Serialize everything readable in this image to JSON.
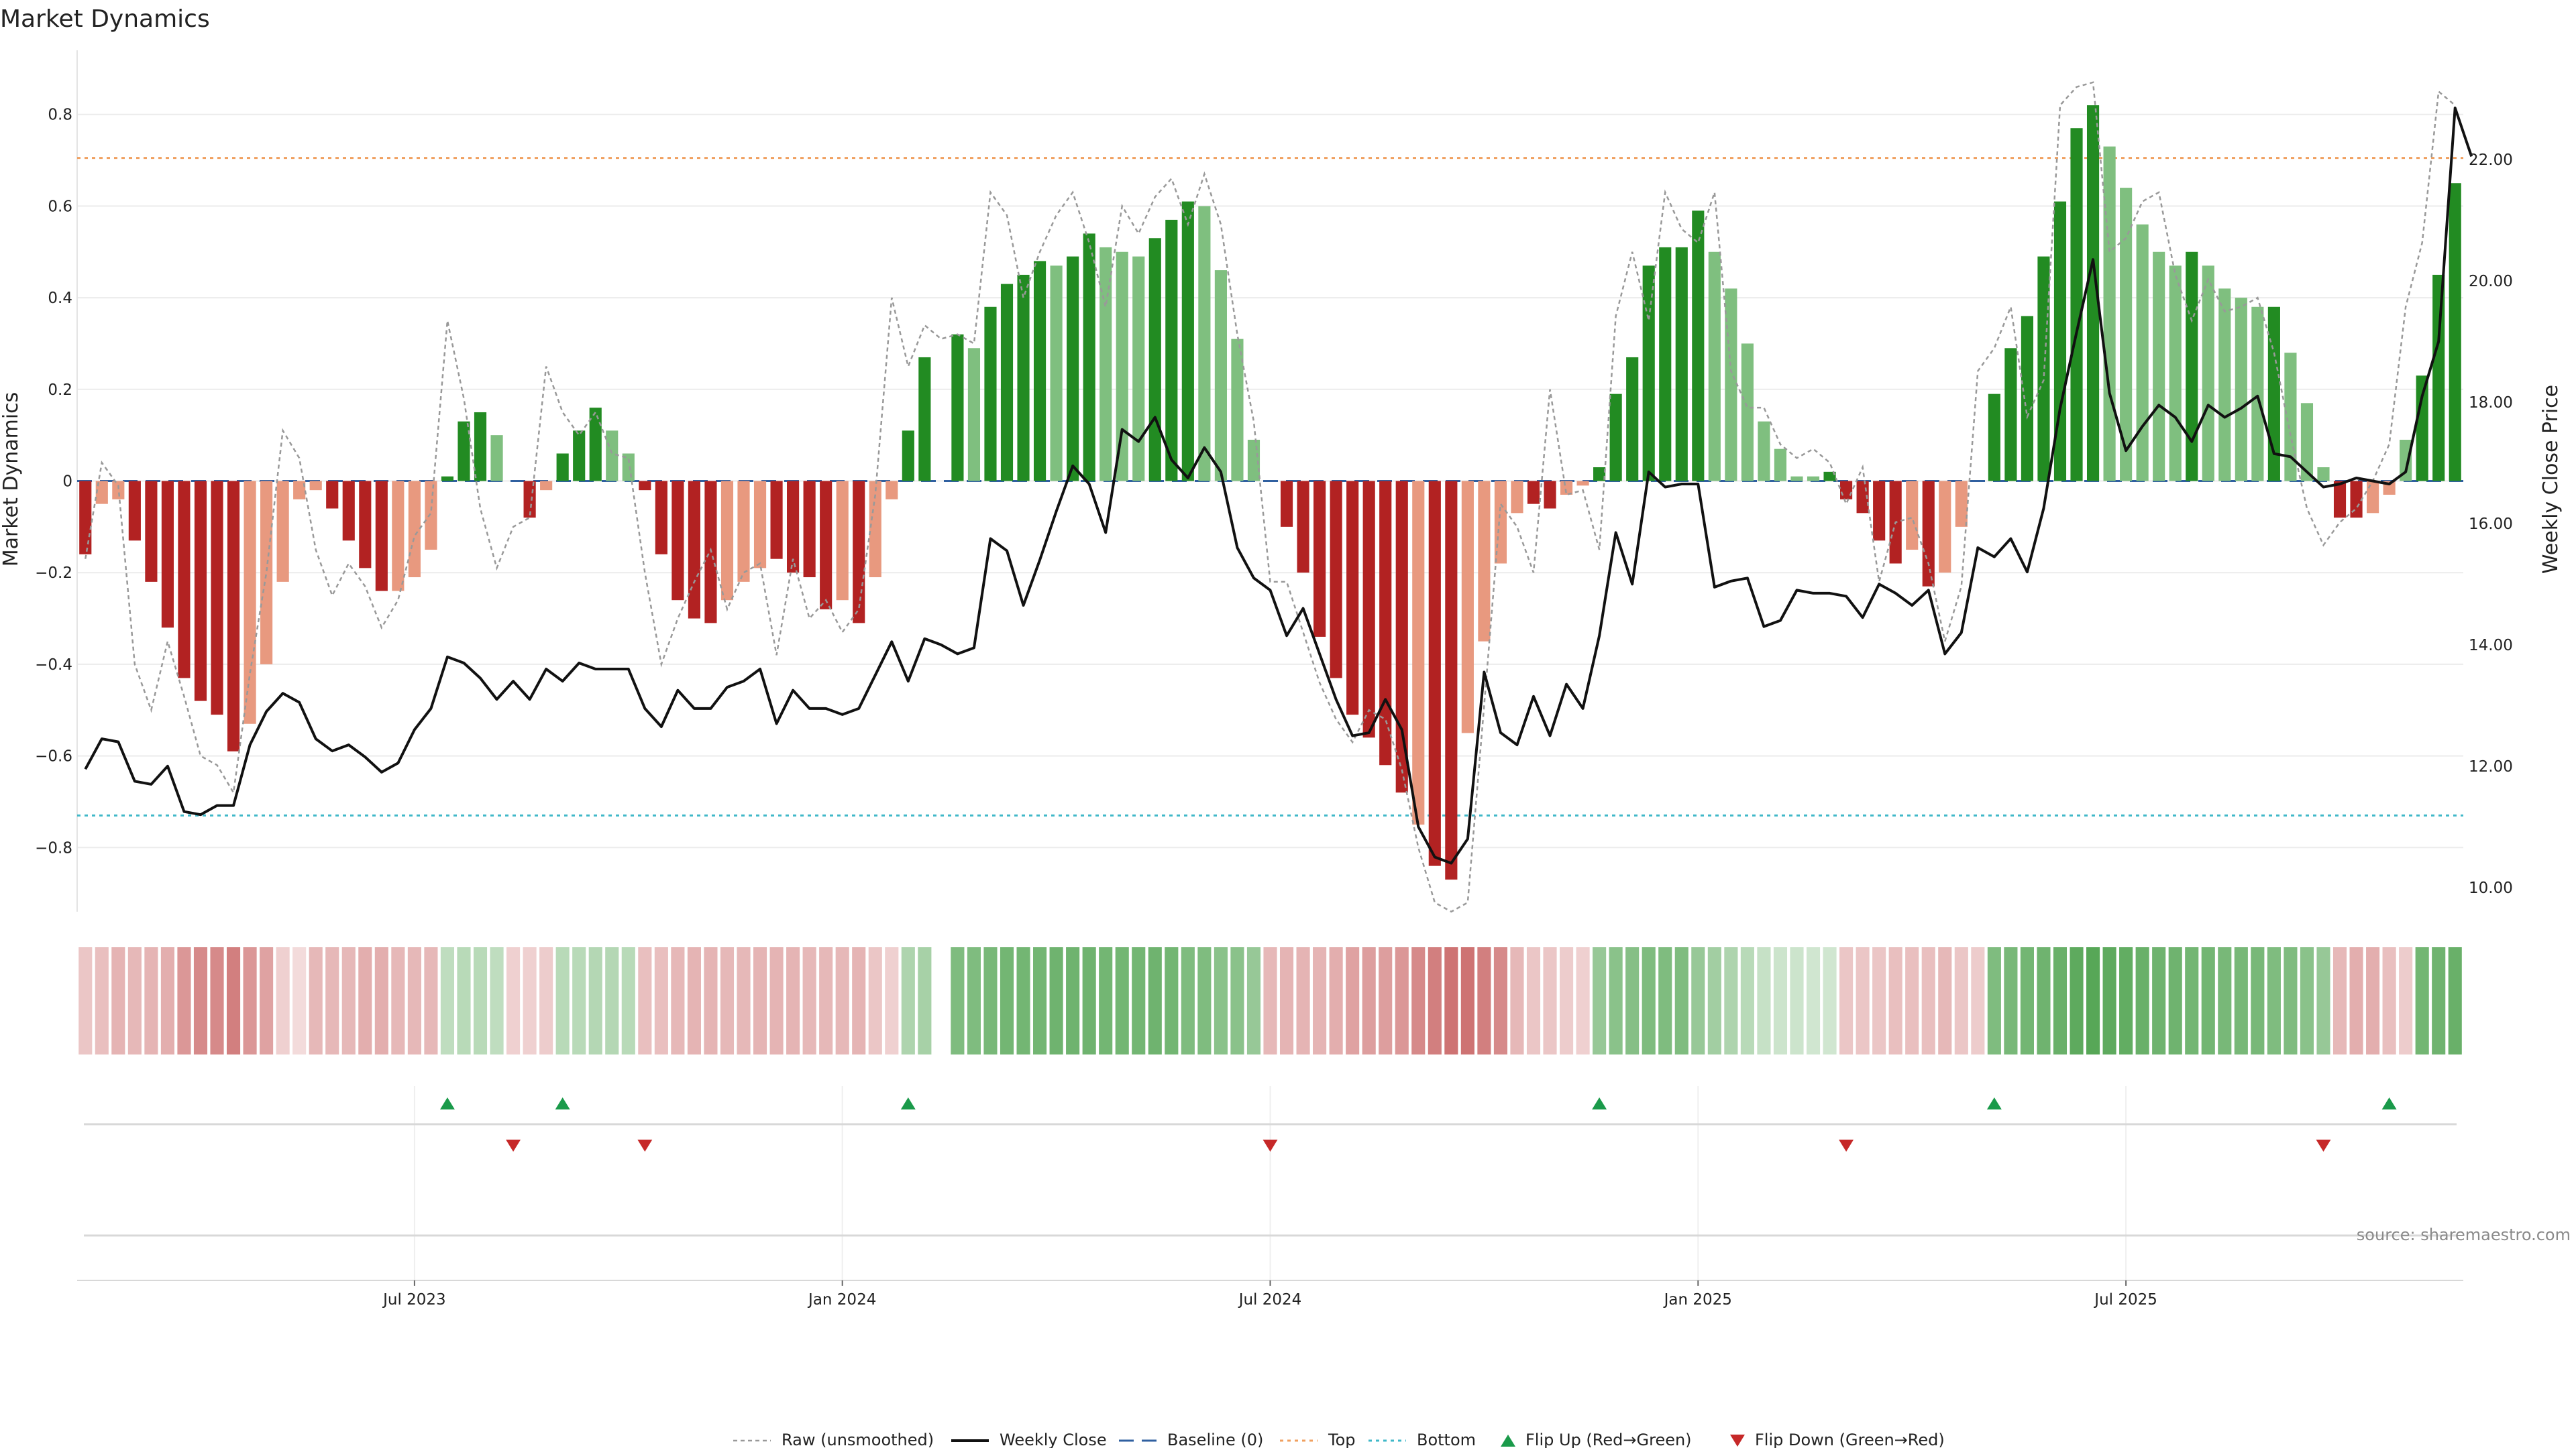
{
  "chart_data": {
    "type": "bar",
    "title": "Market Dynamics",
    "ylabel": "Market Dynamics",
    "y2label": "Weekly Close Price",
    "ylim": [
      -0.94,
      0.94
    ],
    "y2lim": [
      9.6,
      23.8
    ],
    "y_ticks": [
      -0.8,
      -0.6,
      -0.4,
      -0.2,
      0,
      0.2,
      0.4,
      0.6,
      0.8
    ],
    "y_tick_labels": [
      "−0.8",
      "−0.6",
      "−0.4",
      "−0.2",
      "0",
      "0.2",
      "0.4",
      "0.6",
      "0.8"
    ],
    "y2_ticks": [
      10,
      12,
      14,
      16,
      18,
      20,
      22
    ],
    "y2_tick_labels": [
      "10.00",
      "12.00",
      "14.00",
      "16.00",
      "18.00",
      "20.00",
      "22.00"
    ],
    "x_ticks": [
      {
        "index": 20,
        "label": "Jul 2023"
      },
      {
        "index": 46,
        "label": "Jan 2024"
      },
      {
        "index": 72,
        "label": "Jul 2024"
      },
      {
        "index": 98,
        "label": "Jan 2025"
      },
      {
        "index": 124,
        "label": "Jul 2025"
      }
    ],
    "thresholds": {
      "top": 0.705,
      "bottom": -0.73,
      "baseline": 0
    },
    "grid": true,
    "legend_position": "bottom",
    "legend": [
      "Raw (unsmoothed)",
      "Weekly Close",
      "Baseline (0)",
      "Top",
      "Bottom",
      "Flip Up (Red→Green)",
      "Flip Down (Green→Red)"
    ],
    "source": "source: sharemaestro.com",
    "colors": {
      "strong_green": "#228b22",
      "light_green": "#7fbf7f",
      "strong_red": "#b22222",
      "light_red": "#e8997f",
      "price": "#111111",
      "raw": "#999999",
      "top": "#f0a060",
      "bottom": "#40b8c8",
      "baseline": "#3060a0",
      "flip_up": "#1a9a4a",
      "flip_down": "#c62828"
    },
    "bars": [
      -0.16,
      -0.05,
      -0.04,
      -0.13,
      -0.22,
      -0.32,
      -0.43,
      -0.48,
      -0.51,
      -0.59,
      -0.53,
      -0.4,
      -0.22,
      -0.04,
      -0.02,
      -0.06,
      -0.13,
      -0.19,
      -0.24,
      -0.24,
      -0.21,
      -0.15,
      0.01,
      0.13,
      0.15,
      0.1,
      0,
      -0.08,
      -0.02,
      0.06,
      0.11,
      0.16,
      0.11,
      0.06,
      -0.02,
      -0.16,
      -0.26,
      -0.3,
      -0.31,
      -0.26,
      -0.22,
      -0.19,
      -0.17,
      -0.2,
      -0.21,
      -0.28,
      -0.26,
      -0.31,
      -0.21,
      -0.04,
      0.11,
      0.27,
      0,
      0.32,
      0.29,
      0.38,
      0.43,
      0.45,
      0.48,
      0.47,
      0.49,
      0.54,
      0.51,
      0.5,
      0.49,
      0.53,
      0.57,
      0.61,
      0.6,
      0.46,
      0.31,
      0.09,
      0,
      -0.1,
      -0.2,
      -0.34,
      -0.43,
      -0.51,
      -0.56,
      -0.62,
      -0.68,
      -0.75,
      -0.84,
      -0.87,
      -0.55,
      -0.35,
      -0.18,
      -0.07,
      -0.05,
      -0.06,
      -0.03,
      -0.01,
      0.03,
      0.19,
      0.27,
      0.47,
      0.51,
      0.51,
      0.59,
      0.5,
      0.42,
      0.3,
      0.13,
      0.07,
      0.01,
      0.01,
      0.02,
      -0.04,
      -0.07,
      -0.13,
      -0.18,
      -0.15,
      -0.23,
      -0.2,
      -0.1,
      0,
      0.19,
      0.29,
      0.36,
      0.49,
      0.61,
      0.77,
      0.82,
      0.73,
      0.64,
      0.56,
      0.5,
      0.47,
      0.5,
      0.47,
      0.42,
      0.4,
      0.38,
      0.38,
      0.28,
      0.17,
      0.03,
      -0.08,
      -0.08,
      -0.07,
      -0.03,
      0.09,
      0.23,
      0.45,
      0.65
    ],
    "bar_strength": [
      "s",
      "l",
      "l",
      "s",
      "s",
      "s",
      "s",
      "s",
      "s",
      "s",
      "l",
      "l",
      "l",
      "l",
      "l",
      "s",
      "s",
      "s",
      "s",
      "l",
      "l",
      "l",
      "s",
      "s",
      "s",
      "l",
      "s",
      "s",
      "l",
      "s",
      "s",
      "s",
      "l",
      "l",
      "s",
      "s",
      "s",
      "s",
      "s",
      "l",
      "l",
      "l",
      "s",
      "s",
      "s",
      "s",
      "l",
      "s",
      "l",
      "l",
      "s",
      "s",
      "s",
      "s",
      "l",
      "s",
      "s",
      "s",
      "s",
      "l",
      "s",
      "s",
      "l",
      "l",
      "l",
      "s",
      "s",
      "s",
      "l",
      "l",
      "l",
      "l",
      "s",
      "s",
      "s",
      "s",
      "s",
      "s",
      "s",
      "s",
      "s",
      "l",
      "s",
      "s",
      "l",
      "l",
      "l",
      "l",
      "s",
      "s",
      "l",
      "l",
      "s",
      "s",
      "s",
      "s",
      "s",
      "s",
      "s",
      "l",
      "l",
      "l",
      "l",
      "l",
      "l",
      "l",
      "s",
      "s",
      "s",
      "s",
      "s",
      "l",
      "s",
      "l",
      "l",
      "l",
      "s",
      "s",
      "s",
      "s",
      "s",
      "s",
      "s",
      "l",
      "l",
      "l",
      "l",
      "l",
      "s",
      "l",
      "l",
      "l",
      "l",
      "s",
      "l",
      "l",
      "l",
      "s",
      "s",
      "l",
      "l",
      "l",
      "s",
      "s",
      "s"
    ],
    "price": [
      11.95,
      12.45,
      12.4,
      11.75,
      11.7,
      12.0,
      11.25,
      11.2,
      11.35,
      11.35,
      12.35,
      12.9,
      13.2,
      13.05,
      12.45,
      12.25,
      12.35,
      12.15,
      11.9,
      12.05,
      12.6,
      12.95,
      13.8,
      13.7,
      13.45,
      13.1,
      13.4,
      13.1,
      13.6,
      13.4,
      13.7,
      13.6,
      13.6,
      13.6,
      12.95,
      12.65,
      13.25,
      12.95,
      12.95,
      13.3,
      13.4,
      13.6,
      12.7,
      13.25,
      12.95,
      12.95,
      12.85,
      12.95,
      13.5,
      14.05,
      13.4,
      14.1,
      14.0,
      13.85,
      13.95,
      15.75,
      15.55,
      14.65,
      15.4,
      16.2,
      16.95,
      16.65,
      15.85,
      17.55,
      17.35,
      17.75,
      17.05,
      16.75,
      17.25,
      16.85,
      15.6,
      15.1,
      14.9,
      14.15,
      14.6,
      13.85,
      13.1,
      12.5,
      12.55,
      13.1,
      12.6,
      11.0,
      10.5,
      10.4,
      10.8,
      13.55,
      12.55,
      12.35,
      13.15,
      12.5,
      13.35,
      12.95,
      14.15,
      15.85,
      15.0,
      16.85,
      16.6,
      16.65,
      16.65,
      14.95,
      15.05,
      15.1,
      14.3,
      14.4,
      14.9,
      14.85,
      14.85,
      14.8,
      14.45,
      15.0,
      14.85,
      14.65,
      14.9,
      13.85,
      14.2,
      15.6,
      15.45,
      15.75,
      15.2,
      16.25,
      17.9,
      19.15,
      20.35,
      18.15,
      17.2,
      17.6,
      17.95,
      17.75,
      17.35,
      17.95,
      17.75,
      17.9,
      18.1,
      17.15,
      17.1,
      16.85,
      16.6,
      16.65,
      16.75,
      16.7,
      16.65,
      16.85,
      18.1,
      19.0,
      22.85,
      22.05
    ],
    "raw": [
      -0.17,
      0.04,
      -0.01,
      -0.4,
      -0.5,
      -0.35,
      -0.47,
      -0.6,
      -0.62,
      -0.68,
      -0.42,
      -0.2,
      0.11,
      0.05,
      -0.15,
      -0.25,
      -0.18,
      -0.23,
      -0.32,
      -0.26,
      -0.12,
      -0.07,
      0.35,
      0.18,
      -0.06,
      -0.19,
      -0.1,
      -0.08,
      0.25,
      0.15,
      0.1,
      0.15,
      0.06,
      0.05,
      -0.2,
      -0.4,
      -0.3,
      -0.22,
      -0.15,
      -0.28,
      -0.2,
      -0.18,
      -0.38,
      -0.17,
      -0.3,
      -0.26,
      -0.33,
      -0.28,
      -0.03,
      0.4,
      0.25,
      0.34,
      0.31,
      0.32,
      0.3,
      0.63,
      0.58,
      0.4,
      0.5,
      0.58,
      0.63,
      0.52,
      0.38,
      0.6,
      0.54,
      0.62,
      0.66,
      0.56,
      0.67,
      0.56,
      0.32,
      0.13,
      -0.22,
      -0.22,
      -0.33,
      -0.44,
      -0.52,
      -0.57,
      -0.5,
      -0.52,
      -0.63,
      -0.8,
      -0.92,
      -0.94,
      -0.92,
      -0.49,
      -0.05,
      -0.1,
      -0.2,
      0.2,
      -0.03,
      -0.02,
      -0.15,
      0.36,
      0.5,
      0.35,
      0.63,
      0.55,
      0.52,
      0.63,
      0.24,
      0.16,
      0.16,
      0.08,
      0.05,
      0.07,
      0.04,
      -0.05,
      0.03,
      -0.22,
      -0.09,
      -0.08,
      -0.18,
      -0.35,
      -0.23,
      0.24,
      0.29,
      0.38,
      0.14,
      0.22,
      0.82,
      0.86,
      0.87,
      0.5,
      0.53,
      0.61,
      0.63,
      0.45,
      0.35,
      0.44,
      0.37,
      0.38,
      0.4,
      0.28,
      0.1,
      -0.06,
      -0.14,
      -0.09,
      -0.06,
      0.0,
      0.08,
      0.38,
      0.52,
      0.85,
      0.82
    ],
    "heat_strip": [
      0.25,
      0.28,
      0.32,
      0.3,
      0.32,
      0.35,
      0.45,
      0.5,
      0.5,
      0.55,
      0.45,
      0.4,
      0.2,
      0.15,
      0.3,
      0.3,
      0.3,
      0.35,
      0.35,
      0.3,
      0.3,
      0.3,
      -0.28,
      -0.3,
      -0.3,
      -0.28,
      0.2,
      0.2,
      0.22,
      -0.3,
      -0.3,
      -0.32,
      -0.32,
      -0.3,
      0.28,
      0.28,
      0.3,
      0.32,
      0.32,
      0.3,
      0.3,
      0.32,
      0.32,
      0.32,
      0.3,
      0.3,
      0.3,
      0.32,
      0.25,
      0.2,
      -0.35,
      -0.38,
      null,
      -0.55,
      -0.55,
      -0.58,
      -0.6,
      -0.6,
      -0.6,
      -0.62,
      -0.62,
      -0.62,
      -0.6,
      -0.6,
      -0.6,
      -0.62,
      -0.6,
      -0.55,
      -0.55,
      -0.5,
      -0.5,
      -0.45,
      0.3,
      0.32,
      0.32,
      0.32,
      0.35,
      0.4,
      0.42,
      0.42,
      0.45,
      0.5,
      0.55,
      0.6,
      0.6,
      0.55,
      0.5,
      0.3,
      0.25,
      0.25,
      0.22,
      0.2,
      -0.45,
      -0.5,
      -0.52,
      -0.55,
      -0.55,
      -0.55,
      -0.45,
      -0.4,
      -0.35,
      -0.3,
      -0.25,
      -0.22,
      -0.22,
      -0.2,
      -0.2,
      0.25,
      0.25,
      0.25,
      0.28,
      0.28,
      0.28,
      0.3,
      0.25,
      0.22,
      -0.55,
      -0.58,
      -0.6,
      -0.62,
      -0.65,
      -0.7,
      -0.72,
      -0.7,
      -0.68,
      -0.65,
      -0.62,
      -0.62,
      -0.6,
      -0.6,
      -0.58,
      -0.58,
      -0.58,
      -0.55,
      -0.55,
      -0.5,
      -0.45,
      0.3,
      0.35,
      0.35,
      0.28,
      0.22,
      -0.6,
      -0.62,
      -0.65
    ],
    "flip_up_indices": [
      22,
      29,
      50,
      92,
      116,
      140
    ],
    "flip_down_indices": [
      26,
      34,
      72,
      107,
      136
    ]
  }
}
